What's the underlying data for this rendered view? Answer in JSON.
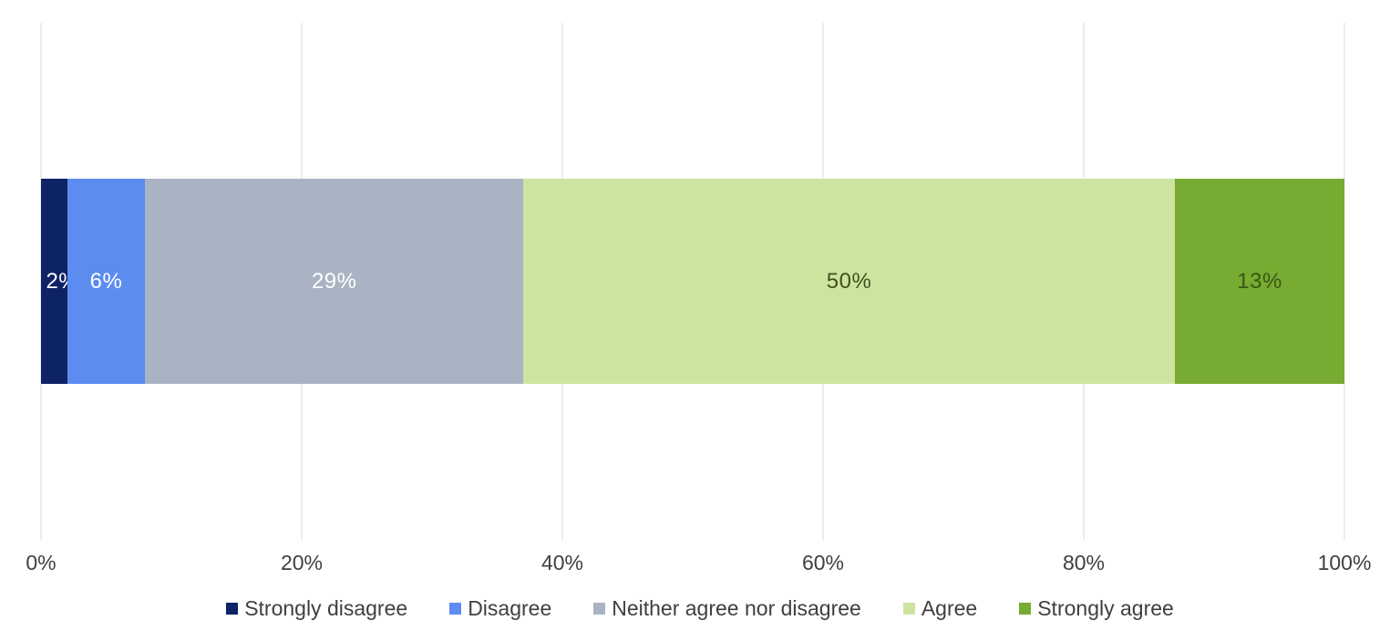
{
  "chart_data": {
    "type": "bar",
    "variant": "stacked-horizontal-likert",
    "title": "",
    "xlabel": "",
    "ylabel": "",
    "xlim": [
      0,
      100
    ],
    "grid": "vertical",
    "legend_position": "bottom",
    "x_ticks": [
      {
        "value": 0,
        "label": "0%"
      },
      {
        "value": 20,
        "label": "20%"
      },
      {
        "value": 40,
        "label": "40%"
      },
      {
        "value": 60,
        "label": "60%"
      },
      {
        "value": 80,
        "label": "80%"
      },
      {
        "value": 100,
        "label": "100%"
      }
    ],
    "series": [
      {
        "name": "Strongly disagree",
        "value": 2,
        "data_label": "2%",
        "color": "#0e2266",
        "label_color": "#ffffff"
      },
      {
        "name": "Disagree",
        "value": 6,
        "data_label": "6%",
        "color": "#5d8cf1",
        "label_color": "#ffffff"
      },
      {
        "name": "Neither agree nor disagree",
        "value": 29,
        "data_label": "29%",
        "color": "#a9b3c4",
        "label_color": "#ffffff"
      },
      {
        "name": "Agree",
        "value": 50,
        "data_label": "50%",
        "color": "#cde4a1",
        "label_color": "#41511d"
      },
      {
        "name": "Strongly agree",
        "value": 13,
        "data_label": "13%",
        "color": "#77ab31",
        "label_color": "#3b5616"
      }
    ]
  },
  "colors": {
    "background": "#ffffff",
    "gridline": "#d9d9d9",
    "axis_text": "#3f3f3f",
    "legend_text": "#3f3f3f"
  }
}
